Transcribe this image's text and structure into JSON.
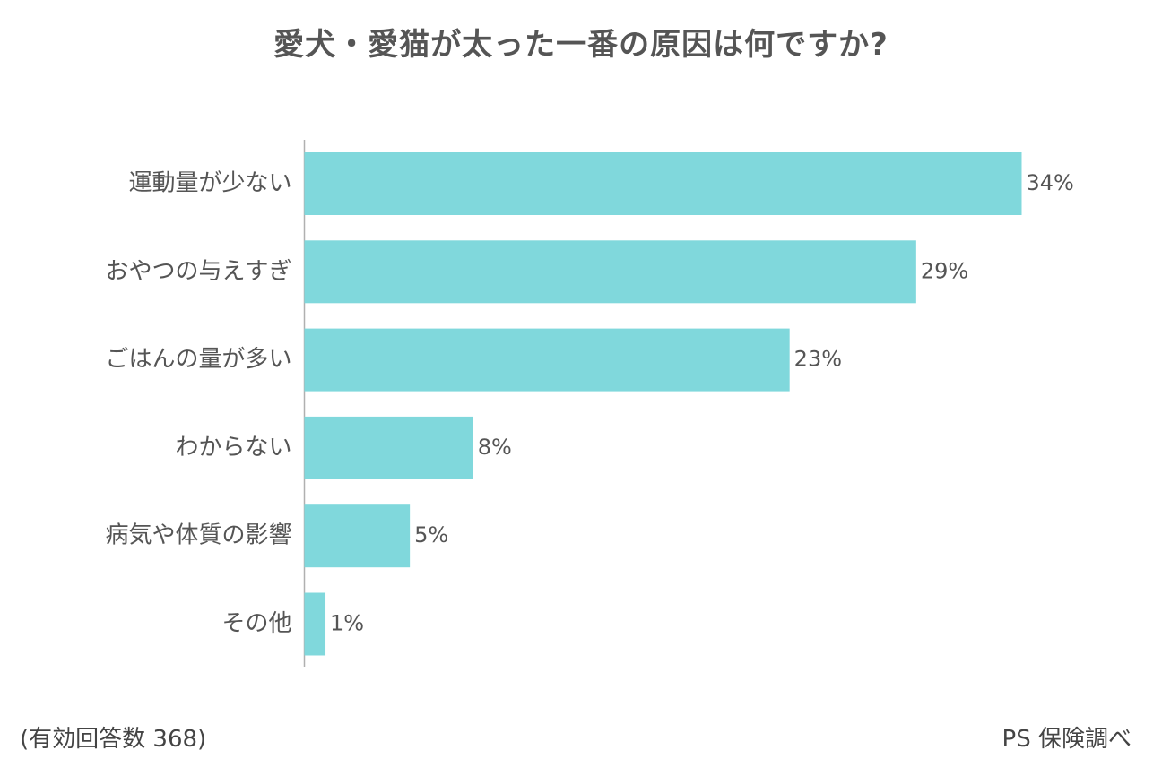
{
  "chart_data": {
    "type": "bar",
    "orientation": "horizontal",
    "title": "愛犬・愛猫が太った一番の原因は何ですか?",
    "categories": [
      "運動量が少ない",
      "おやつの与えすぎ",
      "ごはんの量が多い",
      "わからない",
      "病気や体質の影響",
      "その他"
    ],
    "values": [
      34,
      29,
      23,
      8,
      5,
      1
    ],
    "value_labels": [
      "34%",
      "29%",
      "23%",
      "8%",
      "5%",
      "1%"
    ],
    "unit": "%",
    "xlim": [
      0,
      34
    ],
    "grid": false,
    "bar_color": "#80d8dc"
  },
  "footer": {
    "note": "(有効回答数 368)",
    "source": "PS 保険調べ"
  }
}
